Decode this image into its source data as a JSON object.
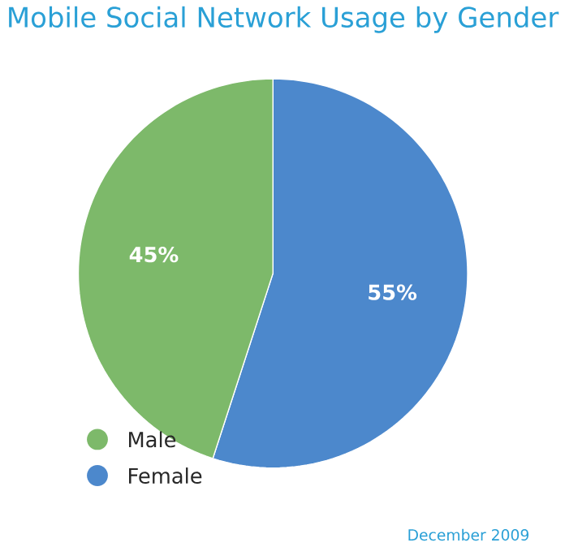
{
  "chart_data": {
    "type": "pie",
    "title": "Mobile Social Network Usage by Gender",
    "categories": [
      "Male",
      "Female"
    ],
    "values": [
      45,
      55
    ],
    "value_labels": [
      "45%",
      "55%"
    ],
    "colors": [
      "#7db96a",
      "#4c88cc"
    ],
    "legend": "bottom left",
    "annotations": [
      "December 2009"
    ]
  }
}
